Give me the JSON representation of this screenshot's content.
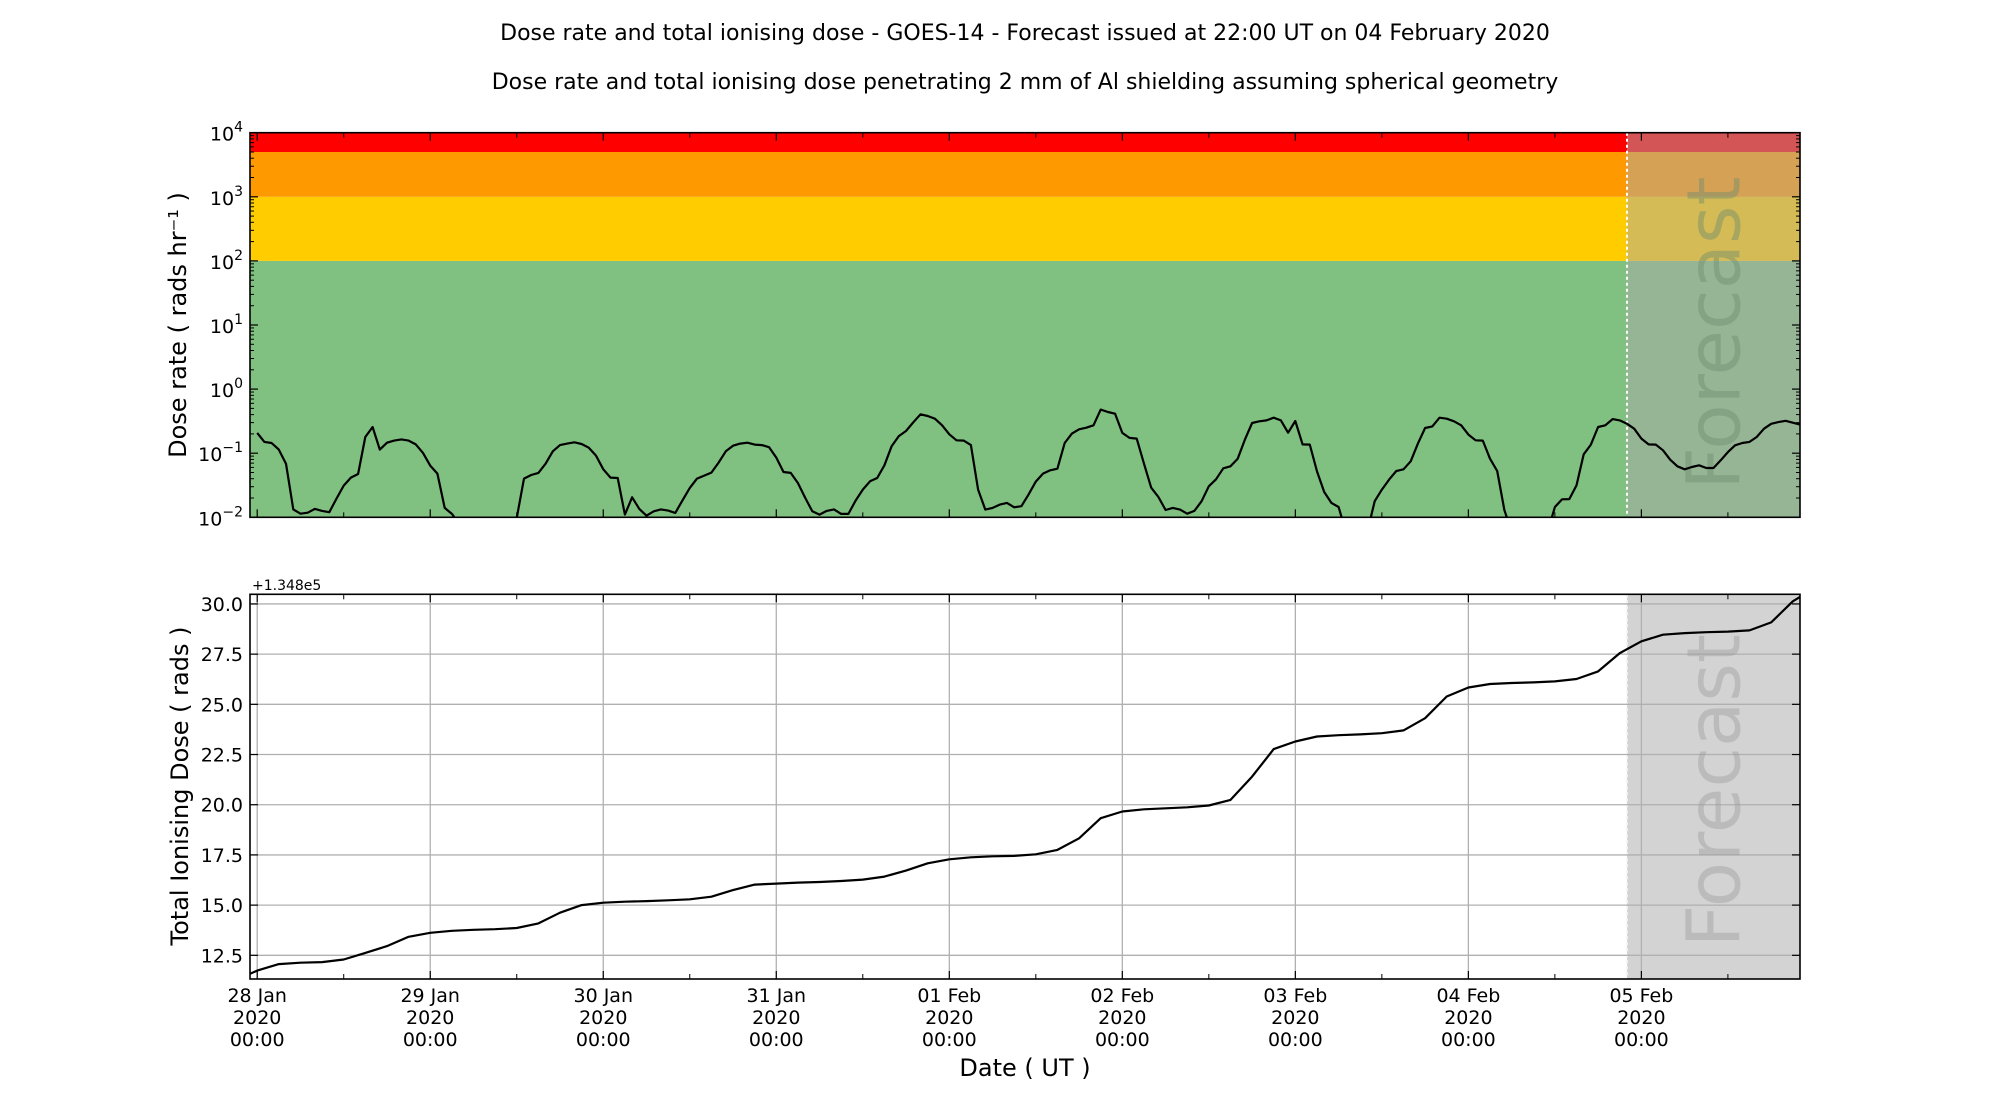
{
  "titles": {
    "main": "Dose rate and total ionising dose - GOES-14 - Forecast issued at 22:00 UT on 04 February 2020",
    "sub": "Dose rate and total ionising dose penetrating 2 mm of Al shielding assuming spherical geometry"
  },
  "chart_data": [
    {
      "type": "line",
      "panel": "top",
      "ylabel": "Dose rate ( rads hr⁻¹ )",
      "yscale": "log",
      "ylim": [
        0.01,
        10000
      ],
      "xlim": [
        "2020-01-27 23:00",
        "2020-02-05 22:00"
      ],
      "grid": false,
      "y_ticks": [
        {
          "value": 10000,
          "base": "10",
          "exp": "4"
        },
        {
          "value": 1000,
          "base": "10",
          "exp": "3"
        },
        {
          "value": 100,
          "base": "10",
          "exp": "2"
        },
        {
          "value": 10,
          "base": "10",
          "exp": "1"
        },
        {
          "value": 1,
          "base": "10",
          "exp": "0"
        },
        {
          "value": 0.1,
          "base": "10",
          "exp": "−1"
        },
        {
          "value": 0.01,
          "base": "10",
          "exp": "−2"
        }
      ],
      "threshold_bands": [
        {
          "from": 0.01,
          "to": 100,
          "color": "#80c080"
        },
        {
          "from": 100,
          "to": 1000,
          "color": "#ffcc00"
        },
        {
          "from": 1000,
          "to": 5000,
          "color": "#ff9900"
        },
        {
          "from": 5000,
          "to": 10000,
          "color": "#ff0000"
        }
      ],
      "forecast_start": "2020-02-04 22:00",
      "forecast_label": "Forecast",
      "line_color": "#000000",
      "x": [
        "2020-01-28 00:00",
        "2020-01-28 01:00",
        "2020-01-28 02:00",
        "2020-01-28 03:00",
        "2020-01-28 04:00",
        "2020-01-28 05:00",
        "2020-01-28 06:00",
        "2020-01-28 07:00",
        "2020-01-28 08:00",
        "2020-01-28 09:00",
        "2020-01-28 10:00",
        "2020-01-28 11:00",
        "2020-01-28 12:00",
        "2020-01-28 13:00",
        "2020-01-28 14:00",
        "2020-01-28 15:00",
        "2020-01-28 16:00",
        "2020-01-28 17:00",
        "2020-01-28 18:00",
        "2020-01-28 19:00",
        "2020-01-28 20:00",
        "2020-01-28 21:00",
        "2020-01-28 22:00",
        "2020-01-28 23:00",
        "2020-01-29 00:00",
        "2020-01-29 01:00",
        "2020-01-29 02:00",
        "2020-01-29 03:00",
        "2020-01-29 04:00",
        "2020-01-29 05:00",
        "2020-01-29 06:00",
        "2020-01-29 07:00",
        "2020-01-29 08:00",
        "2020-01-29 09:00",
        "2020-01-29 10:00",
        "2020-01-29 11:00",
        "2020-01-29 12:00",
        "2020-01-29 13:00",
        "2020-01-29 14:00",
        "2020-01-29 15:00",
        "2020-01-29 16:00",
        "2020-01-29 17:00",
        "2020-01-29 18:00",
        "2020-01-29 19:00",
        "2020-01-29 20:00",
        "2020-01-29 21:00",
        "2020-01-29 22:00",
        "2020-01-29 23:00",
        "2020-01-30 00:00",
        "2020-01-30 01:00",
        "2020-01-30 02:00",
        "2020-01-30 03:00",
        "2020-01-30 04:00",
        "2020-01-30 05:00",
        "2020-01-30 06:00",
        "2020-01-30 07:00",
        "2020-01-30 08:00",
        "2020-01-30 09:00",
        "2020-01-30 10:00",
        "2020-01-30 11:00",
        "2020-01-30 12:00",
        "2020-01-30 13:00",
        "2020-01-30 14:00",
        "2020-01-30 15:00",
        "2020-01-30 16:00",
        "2020-01-30 17:00",
        "2020-01-30 18:00",
        "2020-01-30 19:00",
        "2020-01-30 20:00",
        "2020-01-30 21:00",
        "2020-01-30 22:00",
        "2020-01-30 23:00",
        "2020-01-31 00:00",
        "2020-01-31 01:00",
        "2020-01-31 02:00",
        "2020-01-31 03:00",
        "2020-01-31 04:00",
        "2020-01-31 05:00",
        "2020-01-31 06:00",
        "2020-01-31 07:00",
        "2020-01-31 08:00",
        "2020-01-31 09:00",
        "2020-01-31 10:00",
        "2020-01-31 11:00",
        "2020-01-31 12:00",
        "2020-01-31 13:00",
        "2020-01-31 14:00",
        "2020-01-31 15:00",
        "2020-01-31 16:00",
        "2020-01-31 17:00",
        "2020-01-31 18:00",
        "2020-01-31 19:00",
        "2020-01-31 20:00",
        "2020-01-31 21:00",
        "2020-01-31 22:00",
        "2020-01-31 23:00",
        "2020-02-01 00:00",
        "2020-02-01 01:00",
        "2020-02-01 02:00",
        "2020-02-01 03:00",
        "2020-02-01 04:00",
        "2020-02-01 05:00",
        "2020-02-01 06:00",
        "2020-02-01 07:00",
        "2020-02-01 08:00",
        "2020-02-01 09:00",
        "2020-02-01 10:00",
        "2020-02-01 11:00",
        "2020-02-01 12:00",
        "2020-02-01 13:00",
        "2020-02-01 14:00",
        "2020-02-01 15:00",
        "2020-02-01 16:00",
        "2020-02-01 17:00",
        "2020-02-01 18:00",
        "2020-02-01 19:00",
        "2020-02-01 20:00",
        "2020-02-01 21:00",
        "2020-02-01 22:00",
        "2020-02-01 23:00",
        "2020-02-02 00:00",
        "2020-02-02 01:00",
        "2020-02-02 02:00",
        "2020-02-02 03:00",
        "2020-02-02 04:00",
        "2020-02-02 05:00",
        "2020-02-02 06:00",
        "2020-02-02 07:00",
        "2020-02-02 08:00",
        "2020-02-02 09:00",
        "2020-02-02 10:00",
        "2020-02-02 11:00",
        "2020-02-02 12:00",
        "2020-02-02 13:00",
        "2020-02-02 14:00",
        "2020-02-02 15:00",
        "2020-02-02 16:00",
        "2020-02-02 17:00",
        "2020-02-02 18:00",
        "2020-02-02 19:00",
        "2020-02-02 20:00",
        "2020-02-02 21:00",
        "2020-02-02 22:00",
        "2020-02-02 23:00",
        "2020-02-03 00:00",
        "2020-02-03 01:00",
        "2020-02-03 02:00",
        "2020-02-03 03:00",
        "2020-02-03 04:00",
        "2020-02-03 05:00",
        "2020-02-03 06:00",
        "2020-02-03 07:00",
        "2020-02-03 08:00",
        "2020-02-03 09:00",
        "2020-02-03 10:00",
        "2020-02-03 11:00",
        "2020-02-03 12:00",
        "2020-02-03 13:00",
        "2020-02-03 14:00",
        "2020-02-03 15:00",
        "2020-02-03 16:00",
        "2020-02-03 17:00",
        "2020-02-03 18:00",
        "2020-02-03 19:00",
        "2020-02-03 20:00",
        "2020-02-03 21:00",
        "2020-02-03 22:00",
        "2020-02-03 23:00",
        "2020-02-04 00:00",
        "2020-02-04 01:00",
        "2020-02-04 02:00",
        "2020-02-04 03:00",
        "2020-02-04 04:00",
        "2020-02-04 05:00",
        "2020-02-04 06:00",
        "2020-02-04 07:00",
        "2020-02-04 08:00",
        "2020-02-04 09:00",
        "2020-02-04 10:00",
        "2020-02-04 11:00",
        "2020-02-04 12:00",
        "2020-02-04 13:00",
        "2020-02-04 14:00",
        "2020-02-04 15:00",
        "2020-02-04 16:00",
        "2020-02-04 17:00",
        "2020-02-04 18:00",
        "2020-02-04 19:00",
        "2020-02-04 20:00",
        "2020-02-04 21:00",
        "2020-02-04 22:00",
        "2020-02-04 23:00",
        "2020-02-05 00:00",
        "2020-02-05 01:00",
        "2020-02-05 02:00",
        "2020-02-05 03:00",
        "2020-02-05 04:00",
        "2020-02-05 05:00",
        "2020-02-05 06:00",
        "2020-02-05 07:00",
        "2020-02-05 08:00",
        "2020-02-05 09:00",
        "2020-02-05 10:00",
        "2020-02-05 11:00",
        "2020-02-05 12:00",
        "2020-02-05 13:00",
        "2020-02-05 14:00",
        "2020-02-05 15:00",
        "2020-02-05 16:00",
        "2020-02-05 17:00",
        "2020-02-05 18:00",
        "2020-02-05 19:00",
        "2020-02-05 20:00",
        "2020-02-05 21:00",
        "2020-02-05 22:00"
      ],
      "series": [
        {
          "values": [
            0.207,
            0.15,
            0.144,
            0.114,
            0.0687,
            0.0133,
            0.0114,
            0.0118,
            0.0135,
            0.0126,
            0.012,
            0.0196,
            0.0312,
            0.0416,
            0.0474,
            0.179,
            0.256,
            0.114,
            0.146,
            0.157,
            0.164,
            0.157,
            0.137,
            0.101,
            0.064,
            0.048,
            0.014,
            0.0113,
            0.008,
            0.006,
            0.006,
            0.006,
            0.006,
            0.006,
            0.006,
            0.006,
            0.0097,
            0.0401,
            0.0457,
            0.0492,
            0.0687,
            0.107,
            0.134,
            0.141,
            0.148,
            0.139,
            0.122,
            0.0916,
            0.0561,
            0.0416,
            0.0411,
            0.011,
            0.0205,
            0.0135,
            0.0106,
            0.0124,
            0.0133,
            0.0127,
            0.0117,
            0.0185,
            0.0287,
            0.0401,
            0.0447,
            0.0498,
            0.0713,
            0.107,
            0.131,
            0.141,
            0.146,
            0.136,
            0.134,
            0.124,
            0.0853,
            0.0509,
            0.0492,
            0.0343,
            0.0203,
            0.0124,
            0.011,
            0.0126,
            0.0133,
            0.0113,
            0.0113,
            0.0182,
            0.027,
            0.0365,
            0.0411,
            0.0647,
            0.128,
            0.185,
            0.222,
            0.303,
            0.404,
            0.38,
            0.345,
            0.272,
            0.197,
            0.159,
            0.157,
            0.134,
            0.027,
            0.0132,
            0.014,
            0.0158,
            0.0168,
            0.0143,
            0.0149,
            0.0228,
            0.036,
            0.048,
            0.0541,
            0.0574,
            0.144,
            0.202,
            0.236,
            0.25,
            0.272,
            0.478,
            0.439,
            0.413,
            0.207,
            0.173,
            0.169,
            0.0687,
            0.029,
            0.0207,
            0.013,
            0.014,
            0.0132,
            0.0114,
            0.0126,
            0.0178,
            0.0305,
            0.0392,
            0.0581,
            0.0624,
            0.0822,
            0.163,
            0.296,
            0.314,
            0.325,
            0.358,
            0.325,
            0.209,
            0.318,
            0.137,
            0.136,
            0.0521,
            0.0248,
            0.0168,
            0.0145,
            0.006,
            0.006,
            0.006,
            0.006,
            0.0178,
            0.027,
            0.0387,
            0.0528,
            0.0561,
            0.0747,
            0.141,
            0.247,
            0.262,
            0.358,
            0.345,
            0.314,
            0.272,
            0.195,
            0.159,
            0.157,
            0.0822,
            0.0528,
            0.0129,
            0.006,
            0.006,
            0.006,
            0.006,
            0.006,
            0.006,
            0.0145,
            0.0191,
            0.0192,
            0.0315,
            0.096,
            0.136,
            0.256,
            0.272,
            0.341,
            0.325,
            0.288,
            0.241,
            0.169,
            0.137,
            0.136,
            0.111,
            0.0793,
            0.0624,
            0.0561,
            0.061,
            0.0647,
            0.0588,
            0.0588,
            0.0775,
            0.104,
            0.133,
            0.144,
            0.15,
            0.179,
            0.241,
            0.288,
            0.306,
            0.32,
            0.299,
            0.279
          ]
        }
      ]
    },
    {
      "type": "line",
      "panel": "bottom",
      "xlabel": "Date ( UT )",
      "ylabel": "Total Ionising Dose ( rads )",
      "offset_text": "+1.348e5",
      "ylim": [
        11.32,
        30.48
      ],
      "xlim": [
        "2020-01-27 23:00",
        "2020-02-05 22:00"
      ],
      "grid": true,
      "grid_color": "#b0b0b0",
      "forecast_start": "2020-02-04 22:00",
      "forecast_label": "Forecast",
      "forecast_shade_color": "#d3d3d3",
      "line_color": "#000000",
      "y_ticks": [
        {
          "value": 12.5,
          "label": "12.5"
        },
        {
          "value": 15.0,
          "label": "15.0"
        },
        {
          "value": 17.5,
          "label": "17.5"
        },
        {
          "value": 20.0,
          "label": "20.0"
        },
        {
          "value": 22.5,
          "label": "22.5"
        },
        {
          "value": 25.0,
          "label": "25.0"
        },
        {
          "value": 27.5,
          "label": "27.5"
        },
        {
          "value": 30.0,
          "label": "30.0"
        }
      ],
      "x_ticks": [
        {
          "value": "2020-01-28 00:00",
          "label": [
            "28 Jan",
            "2020",
            "00:00"
          ]
        },
        {
          "value": "2020-01-29 00:00",
          "label": [
            "29 Jan",
            "2020",
            "00:00"
          ]
        },
        {
          "value": "2020-01-30 00:00",
          "label": [
            "30 Jan",
            "2020",
            "00:00"
          ]
        },
        {
          "value": "2020-01-31 00:00",
          "label": [
            "31 Jan",
            "2020",
            "00:00"
          ]
        },
        {
          "value": "2020-02-01 00:00",
          "label": [
            "01 Feb",
            "2020",
            "00:00"
          ]
        },
        {
          "value": "2020-02-02 00:00",
          "label": [
            "02 Feb",
            "2020",
            "00:00"
          ]
        },
        {
          "value": "2020-02-03 00:00",
          "label": [
            "03 Feb",
            "2020",
            "00:00"
          ]
        },
        {
          "value": "2020-02-04 00:00",
          "label": [
            "04 Feb",
            "2020",
            "00:00"
          ]
        },
        {
          "value": "2020-02-05 00:00",
          "label": [
            "05 Feb",
            "2020",
            "00:00"
          ]
        }
      ],
      "x": [
        "2020-01-27 23:00",
        "2020-01-28 00:00",
        "2020-01-28 03:00",
        "2020-01-28 06:00",
        "2020-01-28 09:00",
        "2020-01-28 12:00",
        "2020-01-28 15:00",
        "2020-01-28 18:00",
        "2020-01-28 21:00",
        "2020-01-29 00:00",
        "2020-01-29 03:00",
        "2020-01-29 06:00",
        "2020-01-29 09:00",
        "2020-01-29 12:00",
        "2020-01-29 15:00",
        "2020-01-29 18:00",
        "2020-01-29 21:00",
        "2020-01-30 00:00",
        "2020-01-30 03:00",
        "2020-01-30 06:00",
        "2020-01-30 09:00",
        "2020-01-30 12:00",
        "2020-01-30 15:00",
        "2020-01-30 18:00",
        "2020-01-30 21:00",
        "2020-01-31 00:00",
        "2020-01-31 03:00",
        "2020-01-31 06:00",
        "2020-01-31 09:00",
        "2020-01-31 12:00",
        "2020-01-31 15:00",
        "2020-01-31 18:00",
        "2020-01-31 21:00",
        "2020-02-01 00:00",
        "2020-02-01 03:00",
        "2020-02-01 06:00",
        "2020-02-01 09:00",
        "2020-02-01 12:00",
        "2020-02-01 15:00",
        "2020-02-01 18:00",
        "2020-02-01 21:00",
        "2020-02-02 00:00",
        "2020-02-02 03:00",
        "2020-02-02 06:00",
        "2020-02-02 09:00",
        "2020-02-02 12:00",
        "2020-02-02 15:00",
        "2020-02-02 18:00",
        "2020-02-02 21:00",
        "2020-02-03 00:00",
        "2020-02-03 03:00",
        "2020-02-03 06:00",
        "2020-02-03 09:00",
        "2020-02-03 12:00",
        "2020-02-03 15:00",
        "2020-02-03 18:00",
        "2020-02-03 21:00",
        "2020-02-04 00:00",
        "2020-02-04 03:00",
        "2020-02-04 06:00",
        "2020-02-04 09:00",
        "2020-02-04 12:00",
        "2020-02-04 15:00",
        "2020-02-04 18:00",
        "2020-02-04 21:00",
        "2020-02-05 00:00",
        "2020-02-05 03:00",
        "2020-02-05 06:00",
        "2020-02-05 09:00",
        "2020-02-05 12:00",
        "2020-02-05 15:00",
        "2020-02-05 18:00",
        "2020-02-05 21:00",
        "2020-02-05 22:00"
      ],
      "series": [
        {
          "values": [
            11.58,
            11.74,
            12.06,
            12.13,
            12.16,
            12.29,
            12.62,
            12.96,
            13.42,
            13.62,
            13.72,
            13.77,
            13.8,
            13.86,
            14.09,
            14.62,
            15.0,
            15.12,
            15.17,
            15.2,
            15.24,
            15.29,
            15.42,
            15.75,
            16.02,
            16.07,
            16.12,
            16.15,
            16.2,
            16.27,
            16.42,
            16.72,
            17.08,
            17.28,
            17.38,
            17.43,
            17.45,
            17.53,
            17.75,
            18.33,
            19.33,
            19.66,
            19.77,
            19.82,
            19.87,
            19.96,
            20.24,
            21.4,
            22.77,
            23.15,
            23.4,
            23.46,
            23.5,
            23.56,
            23.7,
            24.31,
            25.39,
            25.84,
            26.01,
            26.06,
            26.09,
            26.14,
            26.26,
            26.64,
            27.55,
            28.14,
            28.47,
            28.55,
            28.59,
            28.62,
            28.68,
            29.08,
            30.13,
            30.35
          ]
        }
      ]
    }
  ]
}
